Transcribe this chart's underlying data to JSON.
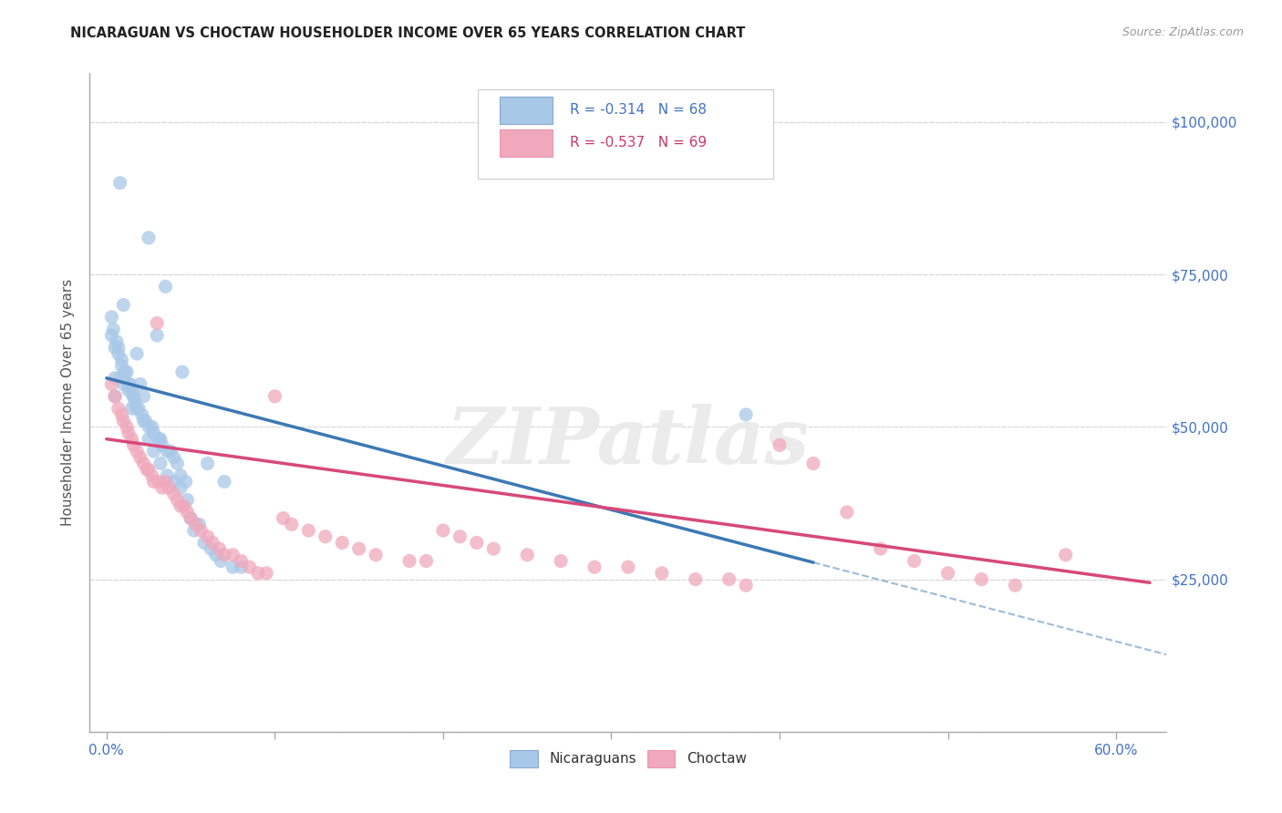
{
  "title": "NICARAGUAN VS CHOCTAW HOUSEHOLDER INCOME OVER 65 YEARS CORRELATION CHART",
  "source": "Source: ZipAtlas.com",
  "ylabel": "Householder Income Over 65 years",
  "ytick_vals": [
    0,
    25000,
    50000,
    75000,
    100000
  ],
  "ytick_labels": [
    "",
    "$25,000",
    "$50,000",
    "$75,000",
    "$100,000"
  ],
  "xtick_vals": [
    0.0,
    0.1,
    0.2,
    0.3,
    0.4,
    0.5,
    0.6
  ],
  "xtick_labels_show": [
    "0.0%",
    "",
    "",
    "",
    "",
    "",
    "60.0%"
  ],
  "xlim": [
    -0.01,
    0.63
  ],
  "ylim": [
    0,
    108000
  ],
  "background_color": "#ffffff",
  "grid_color": "#d8d8d8",
  "blue_color": "#a8c8e8",
  "blue_line_color": "#3c78b4",
  "pink_color": "#f0a8bc",
  "pink_line_color": "#d84878",
  "axis_label_color": "#4472c4",
  "title_color": "#222222",
  "r_blue": -0.314,
  "n_blue": 68,
  "r_pink": -0.537,
  "n_pink": 69,
  "legend_label_blue": "Nicaraguans",
  "legend_label_pink": "Choctaw",
  "watermark": "ZIPatlas",
  "blue_line_intercept": 58000,
  "blue_line_slope": -72000,
  "pink_line_intercept": 48000,
  "pink_line_slope": -38000,
  "blue_scatter_x": [
    0.003,
    0.005,
    0.005,
    0.005,
    0.007,
    0.008,
    0.008,
    0.009,
    0.01,
    0.01,
    0.012,
    0.013,
    0.014,
    0.015,
    0.015,
    0.016,
    0.017,
    0.018,
    0.018,
    0.02,
    0.021,
    0.022,
    0.023,
    0.025,
    0.025,
    0.027,
    0.028,
    0.03,
    0.031,
    0.032,
    0.033,
    0.035,
    0.036,
    0.038,
    0.04,
    0.042,
    0.044,
    0.045,
    0.047,
    0.05,
    0.052,
    0.055,
    0.058,
    0.06,
    0.062,
    0.065,
    0.068,
    0.07,
    0.075,
    0.08,
    0.003,
    0.004,
    0.006,
    0.007,
    0.009,
    0.011,
    0.013,
    0.016,
    0.019,
    0.022,
    0.025,
    0.028,
    0.032,
    0.036,
    0.04,
    0.044,
    0.048,
    0.38
  ],
  "blue_scatter_y": [
    65000,
    63000,
    58000,
    55000,
    62000,
    90000,
    58000,
    60000,
    70000,
    57000,
    59000,
    56000,
    57000,
    56000,
    53000,
    55000,
    54000,
    62000,
    53000,
    57000,
    52000,
    55000,
    51000,
    81000,
    50000,
    50000,
    49000,
    65000,
    48000,
    48000,
    47000,
    73000,
    46000,
    46000,
    45000,
    44000,
    42000,
    59000,
    41000,
    35000,
    33000,
    34000,
    31000,
    44000,
    30000,
    29000,
    28000,
    41000,
    27000,
    27000,
    68000,
    66000,
    64000,
    63000,
    61000,
    59000,
    57000,
    55000,
    53000,
    51000,
    48000,
    46000,
    44000,
    42000,
    41000,
    40000,
    38000,
    52000
  ],
  "pink_scatter_x": [
    0.003,
    0.005,
    0.007,
    0.009,
    0.01,
    0.012,
    0.013,
    0.015,
    0.016,
    0.018,
    0.02,
    0.022,
    0.024,
    0.025,
    0.027,
    0.028,
    0.03,
    0.031,
    0.033,
    0.035,
    0.037,
    0.04,
    0.042,
    0.044,
    0.046,
    0.048,
    0.05,
    0.053,
    0.056,
    0.06,
    0.063,
    0.067,
    0.07,
    0.075,
    0.08,
    0.085,
    0.09,
    0.095,
    0.1,
    0.105,
    0.11,
    0.12,
    0.13,
    0.14,
    0.15,
    0.16,
    0.18,
    0.19,
    0.2,
    0.21,
    0.22,
    0.23,
    0.25,
    0.27,
    0.29,
    0.31,
    0.33,
    0.35,
    0.37,
    0.38,
    0.4,
    0.42,
    0.44,
    0.46,
    0.48,
    0.5,
    0.52,
    0.54,
    0.57
  ],
  "pink_scatter_y": [
    57000,
    55000,
    53000,
    52000,
    51000,
    50000,
    49000,
    48000,
    47000,
    46000,
    45000,
    44000,
    43000,
    43000,
    42000,
    41000,
    67000,
    41000,
    40000,
    41000,
    40000,
    39000,
    38000,
    37000,
    37000,
    36000,
    35000,
    34000,
    33000,
    32000,
    31000,
    30000,
    29000,
    29000,
    28000,
    27000,
    26000,
    26000,
    55000,
    35000,
    34000,
    33000,
    32000,
    31000,
    30000,
    29000,
    28000,
    28000,
    33000,
    32000,
    31000,
    30000,
    29000,
    28000,
    27000,
    27000,
    26000,
    25000,
    25000,
    24000,
    47000,
    44000,
    36000,
    30000,
    28000,
    26000,
    25000,
    24000,
    29000
  ]
}
